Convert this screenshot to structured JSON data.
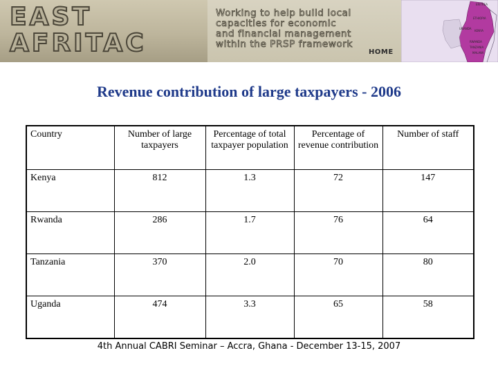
{
  "banner": {
    "logo_line1": "EAST",
    "logo_line2": "AFRITAC",
    "tagline": [
      "Working to help build local",
      "capacities for economic",
      "and financial management",
      "within the PRSP framework"
    ],
    "home_label": "HOME",
    "map_labels": [
      "ERITREA",
      "ETHIOPIA",
      "KENYA",
      "UGANDA",
      "RWANDA",
      "TANZANIA",
      "MALAWI"
    ]
  },
  "title": "Revenue contribution of large taxpayers - 2006",
  "table": {
    "headers": [
      "Country",
      "Number of large taxpayers",
      "Percentage of total taxpayer population",
      "Percentage of revenue contribution",
      "Number of staff"
    ],
    "rows": [
      [
        "Kenya",
        "812",
        "1.3",
        "72",
        "147"
      ],
      [
        "Rwanda",
        "286",
        "1.7",
        "76",
        "64"
      ],
      [
        "Tanzania",
        "370",
        "2.0",
        "70",
        "80"
      ],
      [
        "Uganda",
        "474",
        "3.3",
        "65",
        "58"
      ]
    ]
  },
  "footer": "4th Annual CABRI Seminar – Accra, Ghana - December 13-15, 2007",
  "colors": {
    "title": "#1f3a8a",
    "map_highlight": "#b23aa0",
    "map_land": "#e9dff0"
  }
}
